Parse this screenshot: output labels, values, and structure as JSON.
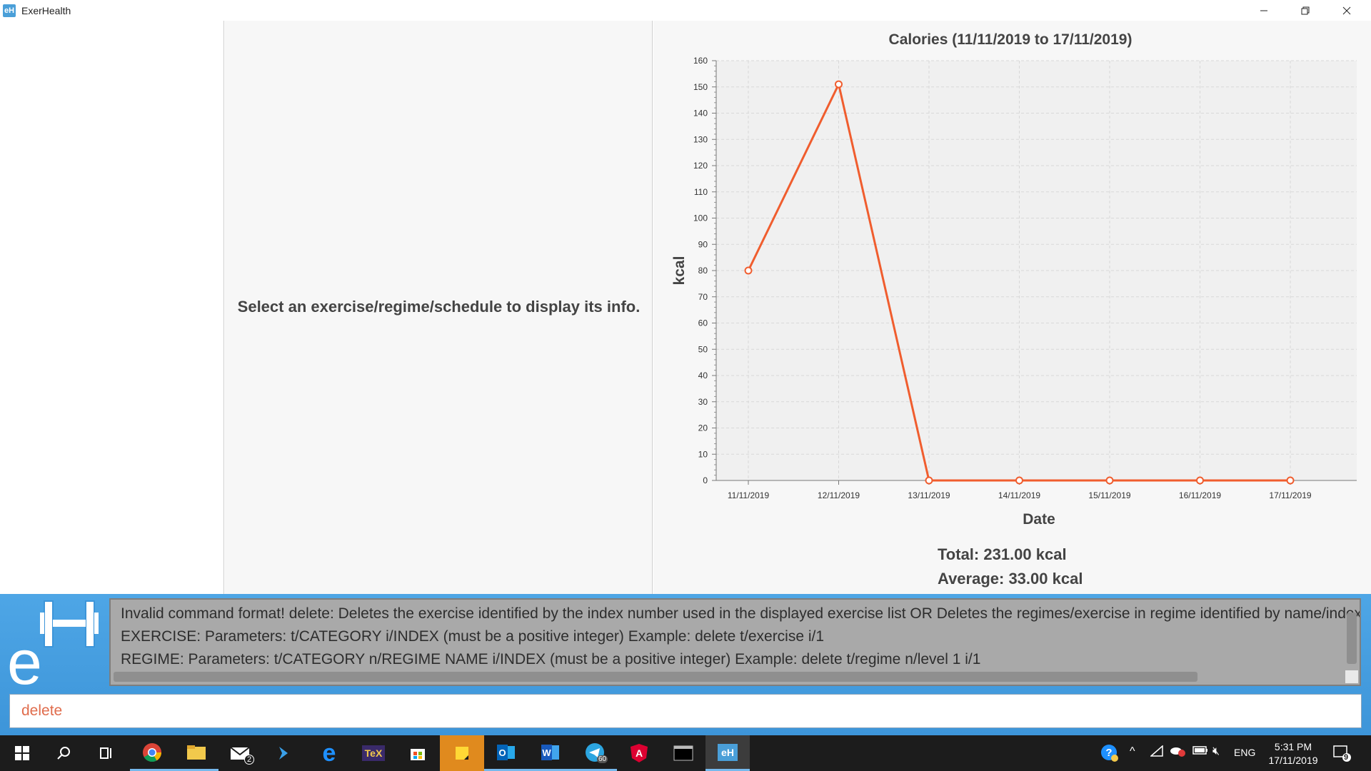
{
  "window": {
    "title": "ExerHealth",
    "icon_text": "eH",
    "minimize_icon": "minimize-icon",
    "maximize_icon": "restore-icon",
    "close_icon": "close-icon"
  },
  "info_panel": {
    "placeholder": "Select an exercise/regime/schedule to display its info."
  },
  "stats": {
    "total": "Total: 231.00 kcal",
    "average": "Average: 33.00 kcal"
  },
  "chart_data": {
    "type": "line",
    "title": "Calories (11/11/2019 to 17/11/2019)",
    "xlabel": "Date",
    "ylabel": "kcal",
    "categories": [
      "11/11/2019",
      "12/11/2019",
      "13/11/2019",
      "14/11/2019",
      "15/11/2019",
      "16/11/2019",
      "17/11/2019"
    ],
    "series": [
      {
        "values": [
          80,
          151,
          0,
          0,
          0,
          0,
          0
        ]
      }
    ],
    "ylim": [
      0,
      160
    ],
    "yticks": [
      0,
      10,
      20,
      30,
      40,
      50,
      60,
      70,
      80,
      90,
      100,
      110,
      120,
      130,
      140,
      150,
      160
    ],
    "grid": true,
    "line_color": "#f05d2e"
  },
  "result_display": {
    "lines": [
      "Invalid command format! delete: Deletes the exercise identified by the index number used in the displayed exercise list OR Deletes the regimes/exercise in regime identified by name/index in",
      "EXERCISE: Parameters: t/CATEGORY i/INDEX (must be a positive integer)  Example: delete t/exercise i/1",
      "REGIME: Parameters: t/CATEGORY n/REGIME NAME i/INDEX (must be a positive integer)         Example: delete t/regime n/level 1 i/1"
    ]
  },
  "command_box": {
    "value": "delete"
  },
  "taskbar": {
    "items": [
      {
        "name": "start-button-icon",
        "glyph": "⊞"
      },
      {
        "name": "search-icon",
        "glyph": "⚲"
      },
      {
        "name": "task-view-icon",
        "glyph": "⧉"
      },
      {
        "name": "chrome-icon",
        "glyph": "◉"
      },
      {
        "name": "file-explorer-icon",
        "glyph": "▬"
      },
      {
        "name": "mail-icon",
        "glyph": "✉"
      },
      {
        "name": "visual-studio-icon",
        "glyph": "⟩"
      },
      {
        "name": "edge-icon",
        "glyph": "e"
      },
      {
        "name": "tex-icon",
        "glyph": "T"
      },
      {
        "name": "store-icon",
        "glyph": "▣"
      },
      {
        "name": "sticky-notes-icon",
        "glyph": "▰"
      },
      {
        "name": "outlook-icon",
        "glyph": "O"
      },
      {
        "name": "word-icon",
        "glyph": "W"
      },
      {
        "name": "telegram-icon",
        "glyph": "➤"
      },
      {
        "name": "angular-icon",
        "glyph": "A"
      },
      {
        "name": "terminal-icon",
        "glyph": "▭"
      },
      {
        "name": "exerhealth-icon",
        "glyph": "eH"
      }
    ],
    "mail_badge": "2",
    "telegram_badge": "60",
    "language": "ENG",
    "time": "5:31 PM",
    "date": "17/11/2019",
    "notification_count": "9"
  }
}
